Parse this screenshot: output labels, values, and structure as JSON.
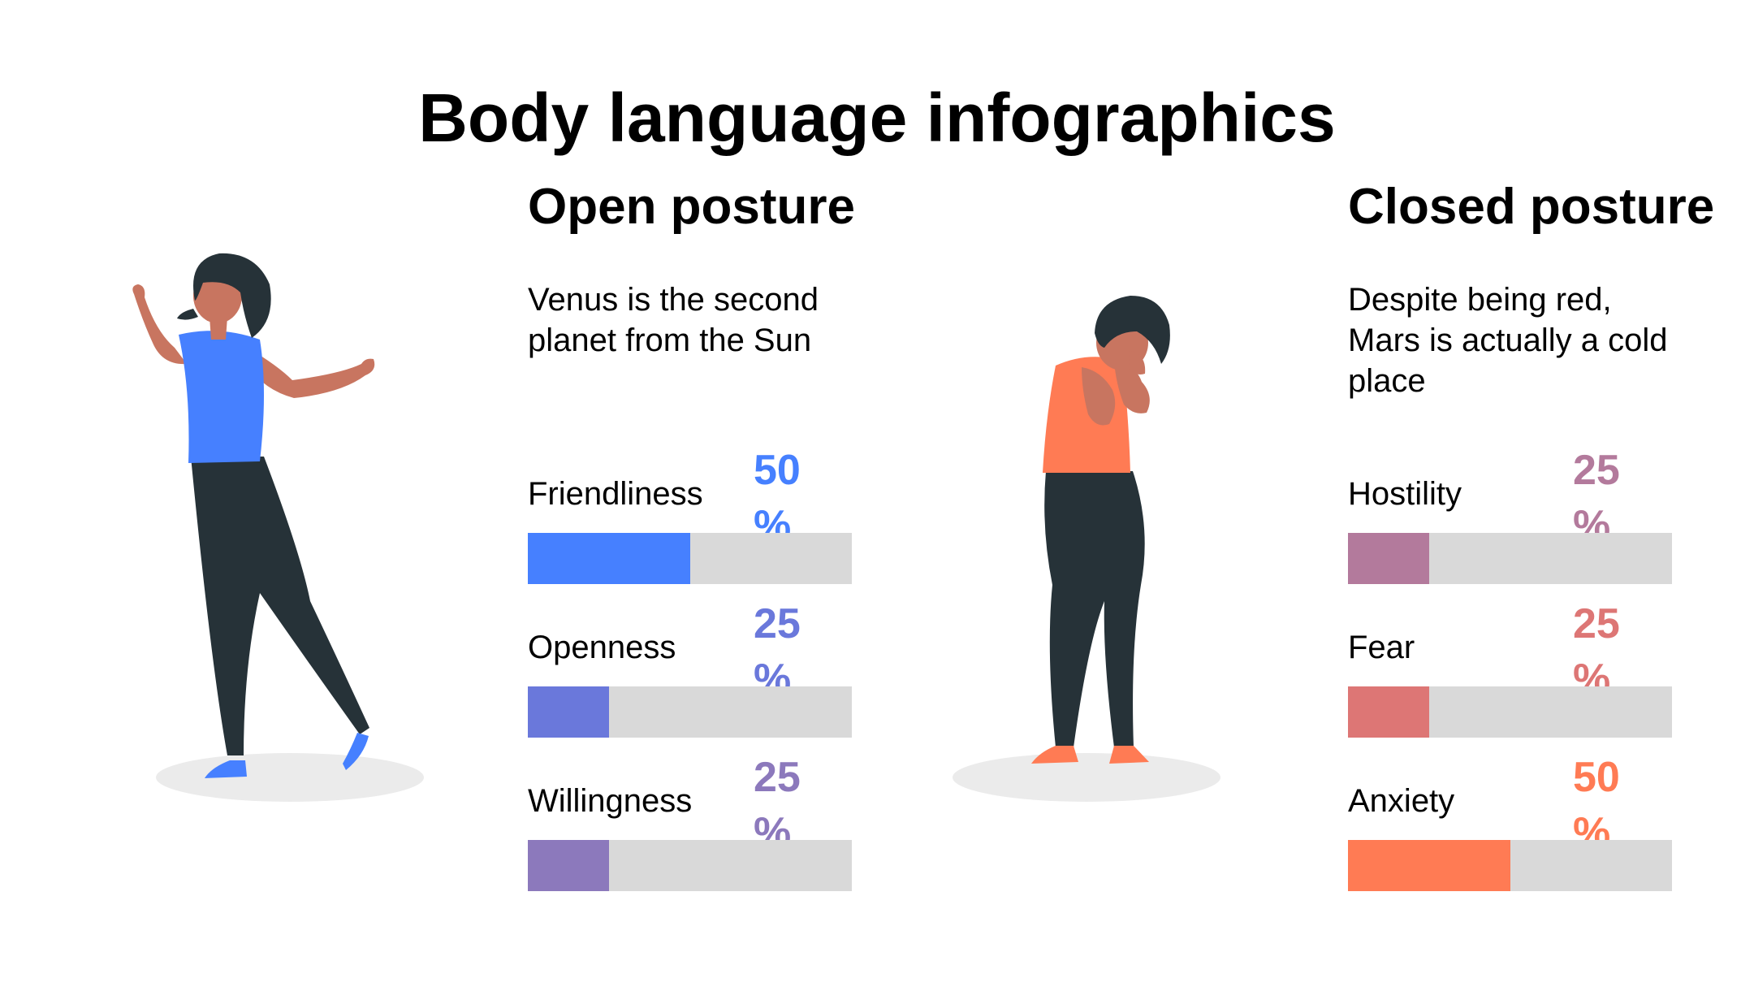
{
  "title": "Body language infographics",
  "open": {
    "heading": "Open posture",
    "description": "Venus is the second planet from the Sun",
    "metrics": [
      {
        "label": "Friendliness",
        "value_text": "50 %",
        "fraction": 0.5,
        "color": "#4680FF"
      },
      {
        "label": "Openness",
        "value_text": "25 %",
        "fraction": 0.25,
        "color": "#6A78DB"
      },
      {
        "label": "Willingness",
        "value_text": "25 %",
        "fraction": 0.25,
        "color": "#8C79BC"
      }
    ]
  },
  "closed": {
    "heading": "Closed posture",
    "description": "Despite being red, Mars is actually a cold place",
    "metrics": [
      {
        "label": "Hostility",
        "value_text": "25 %",
        "fraction": 0.25,
        "color": "#B37A9C"
      },
      {
        "label": "Fear",
        "value_text": "25 %",
        "fraction": 0.25,
        "color": "#DD7675"
      },
      {
        "label": "Anxiety",
        "value_text": "50 %",
        "fraction": 0.5,
        "color": "#FF7B54"
      }
    ]
  },
  "colors": {
    "track": "#D9D9D9",
    "open_shirt": "#4680FF",
    "closed_shirt": "#FF7B54",
    "skin": "#C87560",
    "hair": "#263238",
    "pants": "#263238",
    "shadow": "#EBEBEB"
  },
  "icons": {
    "open_figure": "woman-open-posture-illustration",
    "closed_figure": "woman-closed-posture-illustration"
  }
}
